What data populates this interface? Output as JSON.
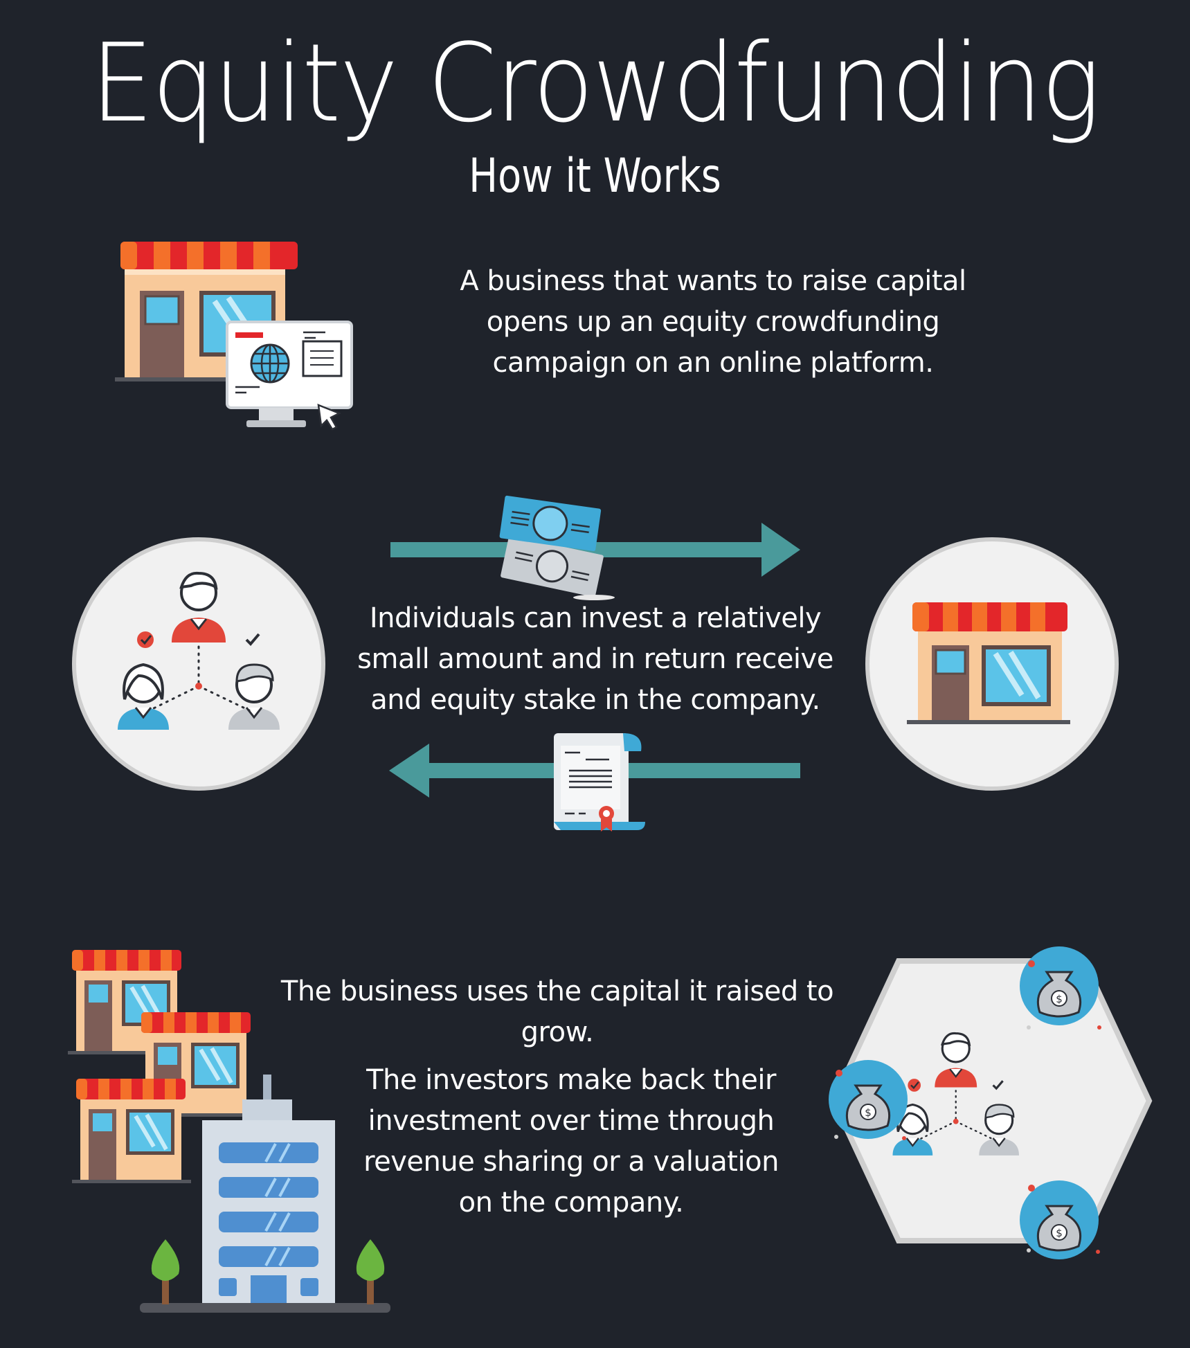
{
  "header": {
    "title": "Equity Crowdfunding",
    "subtitle": "How it Works"
  },
  "step1": {
    "lines": [
      "A business that wants to raise capital",
      "opens up an equity crowdfunding",
      "campaign on an online platform."
    ]
  },
  "step2": {
    "lines": [
      "Individuals can invest a relatively",
      "small amount and in return receive",
      "and equity stake in the company."
    ]
  },
  "step3": {
    "lines": [
      "The business uses the capital it raised to grow."
    ]
  },
  "step4": {
    "lines": [
      "The investors make back their",
      "investment over time through",
      "revenue sharing or a valuation",
      "on the company."
    ]
  },
  "icons": {
    "dollar_symbol": "$"
  },
  "colors": {
    "background": "#1f232b",
    "arrow": "#4a9a9b",
    "awning_red": "#e3262a",
    "awning_orange": "#f4702a",
    "storefront": "#f8c99a",
    "window": "#5bc3e8",
    "door": "#7d5d57",
    "circle": "#f1f1f1",
    "money_blue": "#3fa9d6"
  }
}
